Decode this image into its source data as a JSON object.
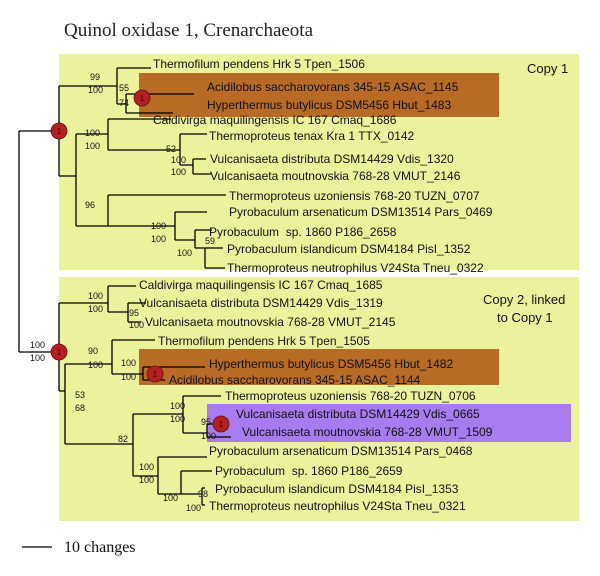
{
  "figure": {
    "title": "Quinol oxidase 1, Crenarchaeota",
    "scale_label": "10 changes"
  },
  "colors": {
    "group_bg": "#ebf29c",
    "highlight_brown": "#b76b24",
    "highlight_purple": "#a97bf0",
    "node_marker": "#b42020",
    "branch": "#000000"
  },
  "groups": {
    "copy1": {
      "label": "Copy 1"
    },
    "copy2": {
      "label_line1": "Copy 2, linked",
      "label_line2": "to Copy 1"
    }
  },
  "leaves": {
    "copy1": [
      "Thermofilum pendens Hrk 5 Tpen_1506",
      "Acidilobus saccharovorans 345-15 ASAC_1145",
      "Hyperthermus butylicus DSM5456 Hbut_1483",
      "Caldivirga maquilingensis IC 167 Cmaq_1686",
      "Thermoproteus tenax Kra 1 TTX_0142",
      "Vulcanisaeta distributa DSM14429 Vdis_1320",
      "Vulcanisaeta moutnovskia 768-28 VMUT_2146",
      "Thermoproteus uzoniensis 768-20 TUZN_0707",
      "Pyrobaculum arsenaticum DSM13514 Pars_0469",
      "Pyrobaculum  sp. 1860 P186_2658",
      "Pyrobaculum islandicum DSM4184 PisI_1352",
      "Thermoproteus neutrophilus V24Sta Tneu_0322"
    ],
    "copy2": [
      "Caldivirga maquilingensis IC 167 Cmaq_1685",
      "Vulcanisaeta distributa DSM14429 Vdis_1319",
      "Vulcanisaeta moutnovskia 768-28 VMUT_2145",
      "Thermofilum pendens Hrk 5 Tpen_1505",
      "Hyperthermus butylicus DSM5456 Hbut_1482",
      "Acidilobus saccharovorans 345-15 ASAC_1144",
      "Thermoproteus uzoniensis 768-20 TUZN_0706",
      "Vulcanisaeta distributa DSM14429 Vdis_0665",
      "Vulcanisaeta moutnovskia 768-28 VMUT_1509",
      "Pyrobaculum arsenaticum DSM13514 Pars_0468",
      "Pyrobaculum  sp. 1860 P186_2659",
      "Pyrobaculum islandicum DSM4184 PisI_1353",
      "Thermoproteus neutrophilus V24Sta Tneu_0321"
    ]
  },
  "support": {
    "root": [
      "100",
      "100"
    ],
    "c1_top": [
      "99",
      "100"
    ],
    "c1_asac_hbut": [
      "55",
      "74"
    ],
    "c1_clade2": [
      "100",
      "100"
    ],
    "c1_ttx": "52",
    "c1_vulc": [
      "100",
      "100"
    ],
    "c1_clade3": "96",
    "c1_pyro": [
      "100",
      "100"
    ],
    "c1_p186": "100",
    "c1_pisl": "59",
    "c2_caldi": [
      "100",
      "100"
    ],
    "c2_vulc": [
      "95",
      "100"
    ],
    "c2_rest": [
      "53",
      "68"
    ],
    "c2_tpen_group": [
      "90",
      "100"
    ],
    "c2_hbut_asac": [
      "100",
      "100"
    ],
    "c2_clade": "82",
    "c2_tuzn": [
      "100",
      "100"
    ],
    "c2_pyro": [
      "100",
      "100"
    ],
    "c2_p186": "100",
    "c2_pisl": [
      "98",
      "100"
    ]
  },
  "node_markers": [
    "1",
    "1",
    "1",
    "1",
    "1"
  ]
}
